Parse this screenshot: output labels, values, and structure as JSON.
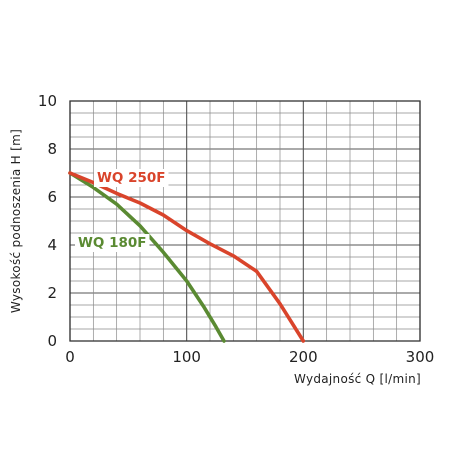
{
  "chart_data": {
    "type": "line",
    "xlabel": "Wydajność Q [l/min]",
    "ylabel": "Wysokość podnoszenia H [m]",
    "xlim": [
      0,
      300
    ],
    "ylim": [
      0,
      10
    ],
    "x_ticks": [
      "0",
      "100",
      "200",
      "300"
    ],
    "y_ticks": [
      "0",
      "2",
      "4",
      "6",
      "8",
      "10"
    ],
    "grid": true,
    "legend": "inline labels",
    "series": [
      {
        "name": "WQ 250F",
        "color": "#d9442b",
        "points": [
          [
            0,
            7.0
          ],
          [
            20,
            6.6
          ],
          [
            40,
            6.15
          ],
          [
            60,
            5.75
          ],
          [
            80,
            5.25
          ],
          [
            100,
            4.6
          ],
          [
            120,
            4.05
          ],
          [
            140,
            3.55
          ],
          [
            160,
            2.9
          ],
          [
            180,
            1.55
          ],
          [
            200,
            0.0
          ]
        ]
      },
      {
        "name": "WQ 180F",
        "color": "#5a8a32",
        "points": [
          [
            0,
            7.0
          ],
          [
            20,
            6.4
          ],
          [
            40,
            5.7
          ],
          [
            60,
            4.8
          ],
          [
            80,
            3.7
          ],
          [
            100,
            2.5
          ],
          [
            115,
            1.4
          ],
          [
            125,
            0.6
          ],
          [
            132,
            0.0
          ]
        ]
      }
    ]
  }
}
